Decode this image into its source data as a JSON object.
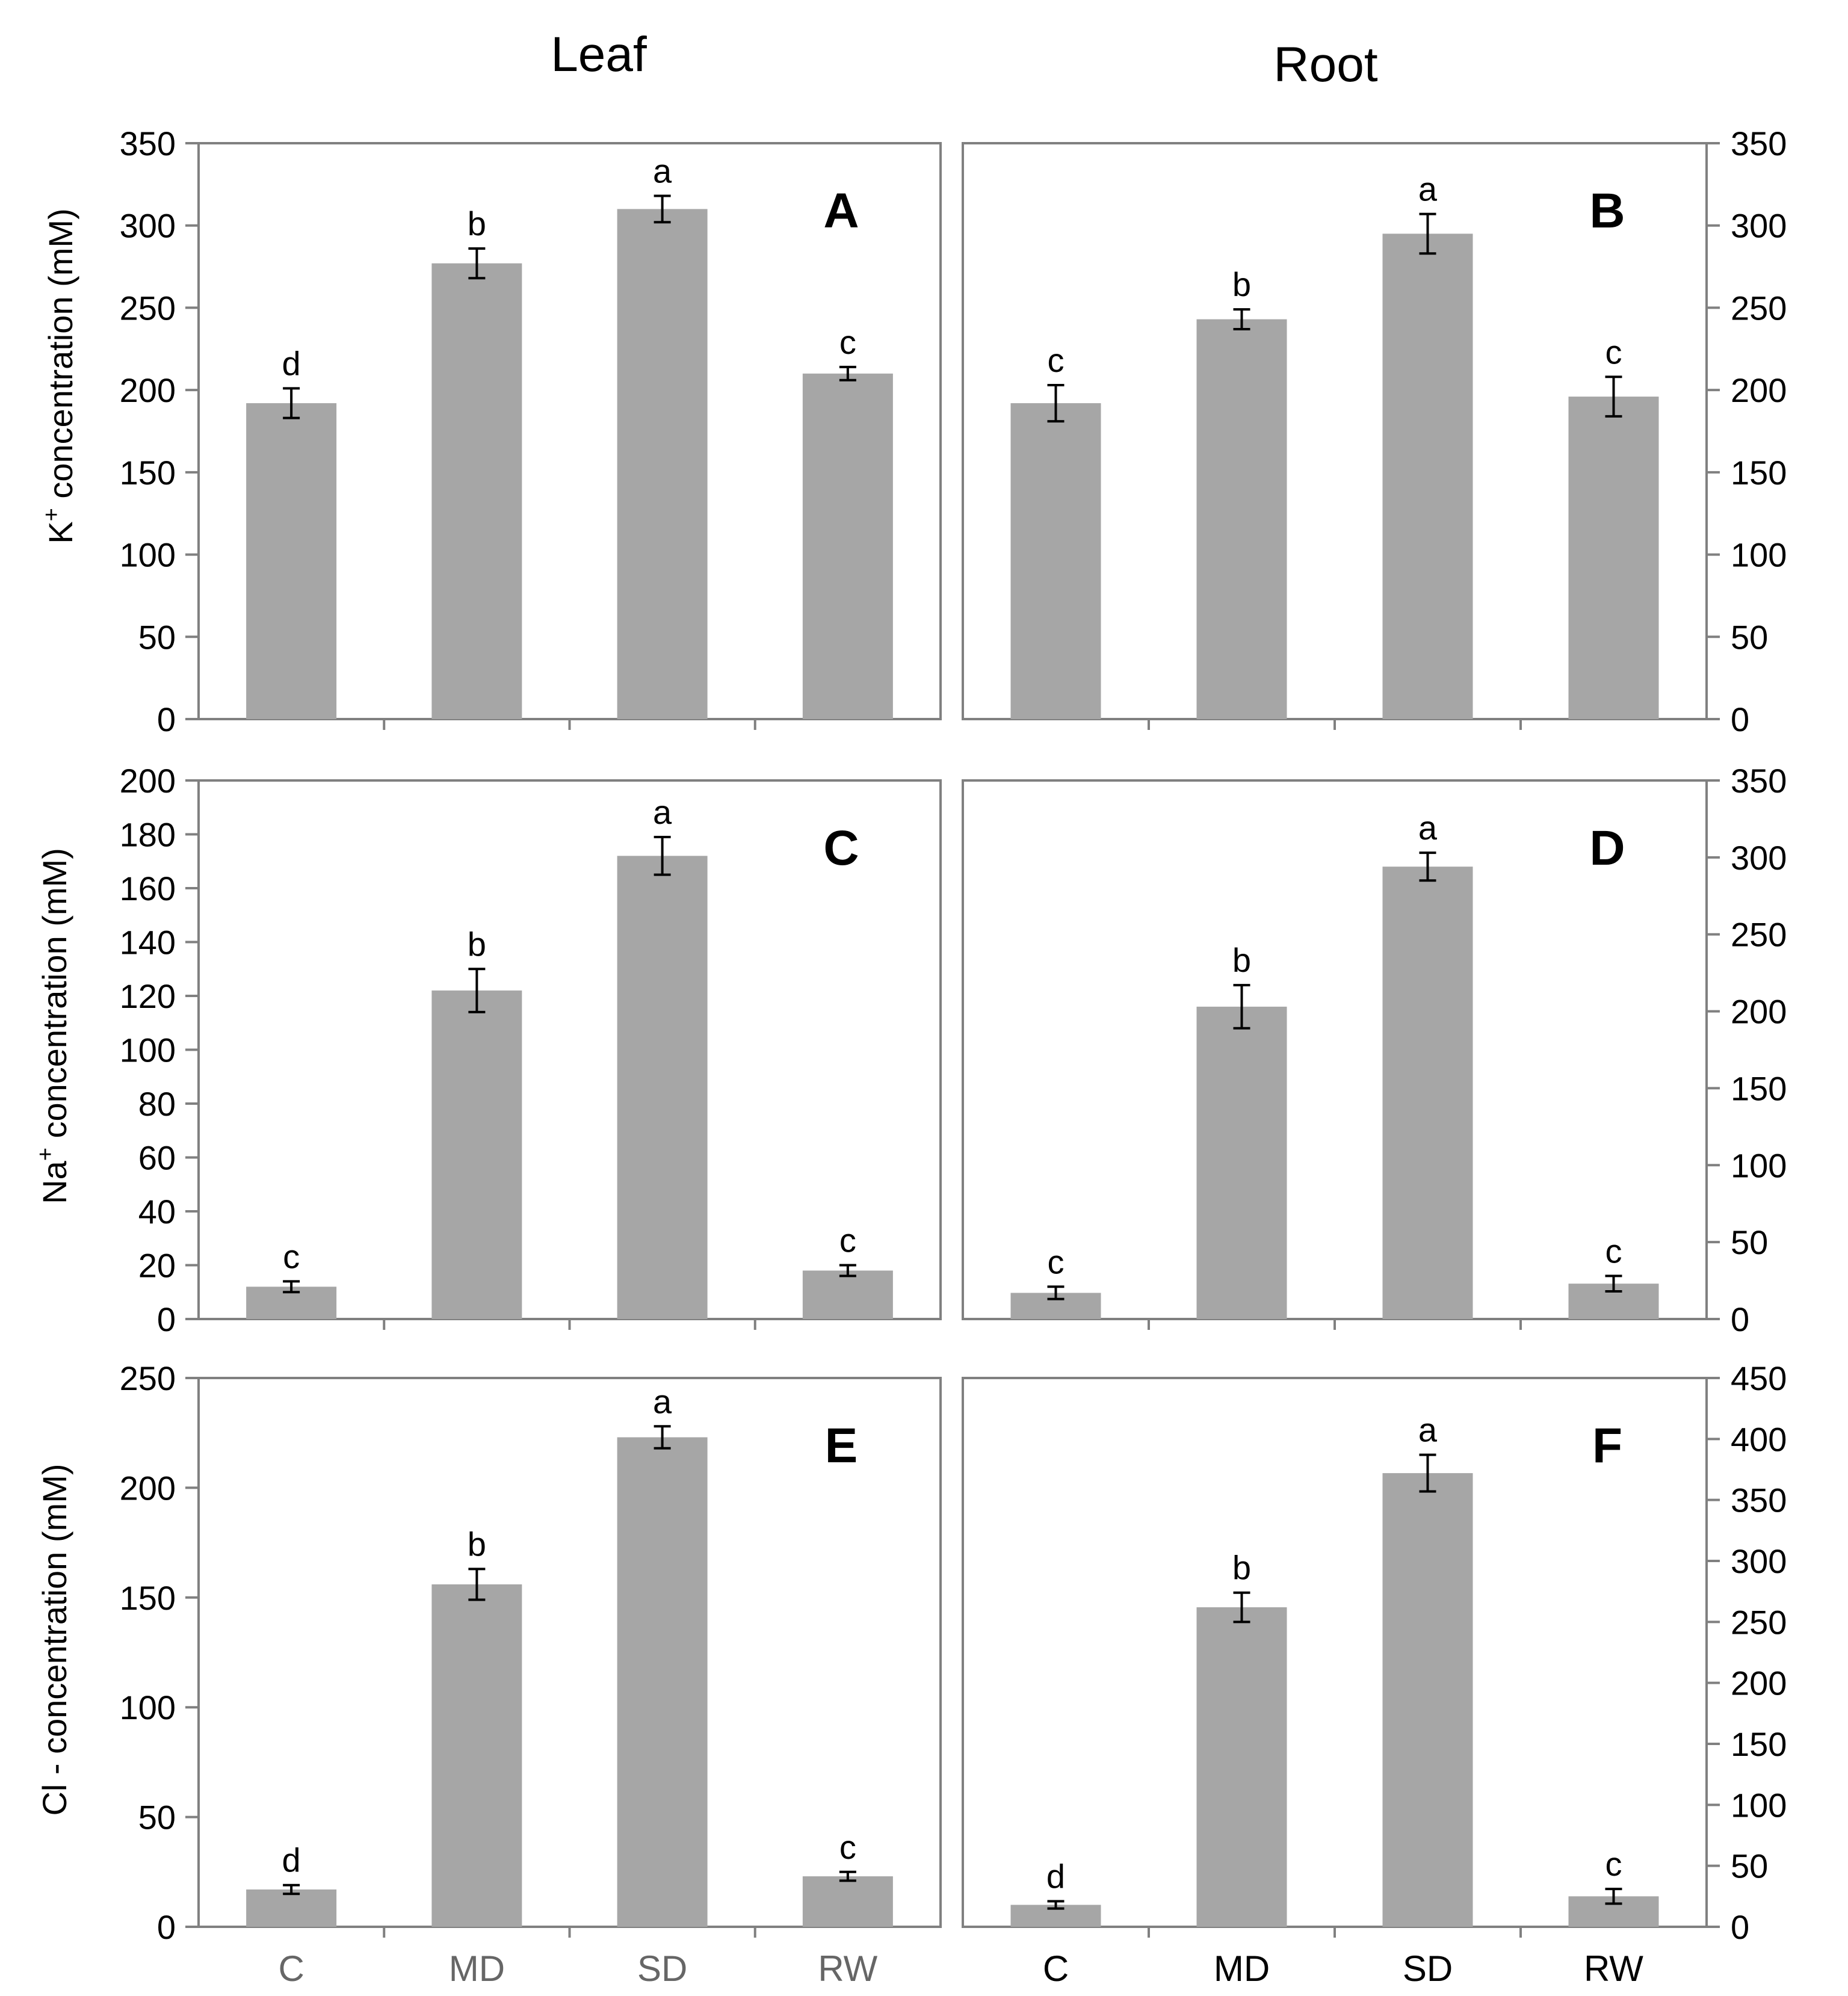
{
  "column_titles": {
    "left": "Leaf",
    "right": "Root"
  },
  "colors": {
    "bar": "#a6a6a6",
    "frame": "#808080",
    "axis": "#808080",
    "text": "#000000",
    "xtick_left": "#666666"
  },
  "chart_data": [
    {
      "panel": "A",
      "column": "Leaf",
      "type": "bar",
      "categories": [
        "C",
        "MD",
        "SD",
        "RW"
      ],
      "values": [
        192,
        277,
        310,
        210
      ],
      "errors": [
        9,
        9,
        8,
        4
      ],
      "letters": [
        "d",
        "b",
        "a",
        "c"
      ],
      "ylabel_main": "K",
      "ylabel_sup": "+",
      "ylabel_rest": " concentration (mM)",
      "ylim": [
        0,
        350
      ],
      "yticks": [
        "0",
        "50",
        "100",
        "150",
        "200",
        "250",
        "300",
        "350"
      ],
      "tick_side": "left"
    },
    {
      "panel": "B",
      "column": "Root",
      "type": "bar",
      "categories": [
        "C",
        "MD",
        "SD",
        "RW"
      ],
      "values": [
        192,
        243,
        295,
        196
      ],
      "errors": [
        11,
        6,
        12,
        12
      ],
      "letters": [
        "c",
        "b",
        "a",
        "c"
      ],
      "ylim": [
        0,
        350
      ],
      "yticks": [
        "0",
        "50",
        "100",
        "150",
        "200",
        "250",
        "300",
        "350"
      ],
      "tick_side": "right"
    },
    {
      "panel": "C",
      "column": "Leaf",
      "type": "bar",
      "categories": [
        "C",
        "MD",
        "SD",
        "RW"
      ],
      "values": [
        12,
        122,
        172,
        18
      ],
      "errors": [
        2,
        8,
        7,
        2
      ],
      "letters": [
        "c",
        "b",
        "a",
        "c"
      ],
      "ylabel_main": "Na",
      "ylabel_sup": "+",
      "ylabel_rest": " concentration (mM)",
      "ylim": [
        0,
        200
      ],
      "yticks": [
        "0",
        "20",
        "40",
        "60",
        "80",
        "100",
        "120",
        "140",
        "160",
        "180",
        "200"
      ],
      "tick_side": "left"
    },
    {
      "panel": "D",
      "column": "Root",
      "type": "bar",
      "categories": [
        "C",
        "MD",
        "SD",
        "RW"
      ],
      "values": [
        17,
        203,
        294,
        23
      ],
      "errors": [
        4,
        14,
        9,
        5
      ],
      "letters": [
        "c",
        "b",
        "a",
        "c"
      ],
      "ylim": [
        0,
        350
      ],
      "yticks": [
        "0",
        "50",
        "100",
        "150",
        "200",
        "250",
        "300",
        "350"
      ],
      "tick_side": "right"
    },
    {
      "panel": "E",
      "column": "Leaf",
      "type": "bar",
      "categories": [
        "C",
        "MD",
        "SD",
        "RW"
      ],
      "values": [
        17,
        156,
        223,
        23
      ],
      "errors": [
        2,
        7,
        5,
        2
      ],
      "letters": [
        "d",
        "b",
        "a",
        "c"
      ],
      "ylabel_main": "Cl - concentration (mM)",
      "ylabel_sup": "",
      "ylabel_rest": "",
      "ylim": [
        0,
        250
      ],
      "yticks": [
        "0",
        "50",
        "100",
        "150",
        "200",
        "250"
      ],
      "tick_side": "left"
    },
    {
      "panel": "F",
      "column": "Root",
      "type": "bar",
      "categories": [
        "C",
        "MD",
        "SD",
        "RW"
      ],
      "values": [
        18,
        262,
        372,
        25
      ],
      "errors": [
        3,
        12,
        15,
        6
      ],
      "letters": [
        "d",
        "b",
        "a",
        "c"
      ],
      "ylim": [
        0,
        450
      ],
      "yticks": [
        "0",
        "50",
        "100",
        "150",
        "200",
        "250",
        "300",
        "350",
        "400",
        "450"
      ],
      "tick_side": "right"
    }
  ]
}
